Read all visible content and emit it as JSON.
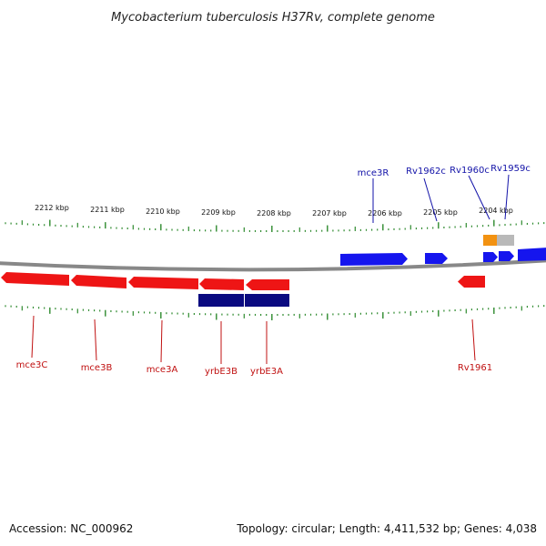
{
  "title": "Mycobacterium tuberculosis H37Rv, complete genome",
  "colors": {
    "forward_gene": "#1515ee",
    "reverse_gene": "#ee1515",
    "rna": "#0a0a80",
    "misc_orange": "#f29212",
    "misc_gray": "#b9b9b9",
    "tick": "#2e8a2e",
    "backbone": "#888888",
    "forward_label": "#1212a8",
    "reverse_label": "#c01010"
  },
  "scale_labels": [
    "2212 kbp",
    "2211 kbp",
    "2210 kbp",
    "2209 kbp",
    "2208 kbp",
    "2207 kbp",
    "2206 kbp",
    "2205 kbp",
    "2204 kbp"
  ],
  "forward_labels": [
    "mce3R",
    "Rv1962c",
    "Rv1960c",
    "Rv1959c"
  ],
  "reverse_labels": [
    "mce3C",
    "mce3B",
    "mce3A",
    "yrbE3B",
    "yrbE3A",
    "Rv1961"
  ],
  "footer": {
    "accession": "Accession: NC_000962",
    "summary": "Topology: circular; Length: 4,411,532 bp; Genes: 4,038"
  }
}
